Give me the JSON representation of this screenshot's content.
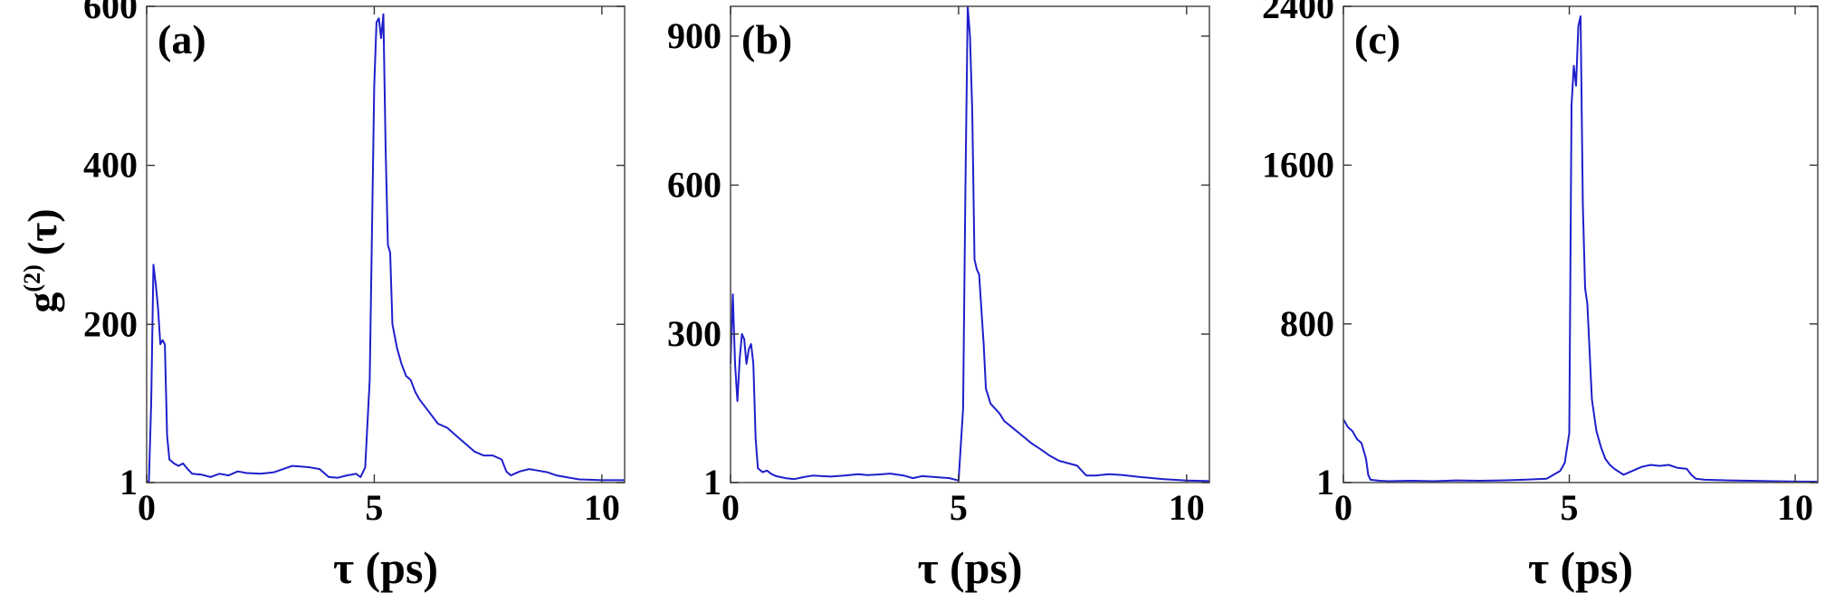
{
  "figure": {
    "ylabel": {
      "main": "g",
      "sup": "(2)",
      "arg": "(τ)"
    },
    "line_color": "#1f1fcc",
    "frame_color": "#555555"
  },
  "chart_data": [
    {
      "type": "line",
      "panel_label": "(a)",
      "xlabel": "τ  (ps)",
      "ylabel": "g(2) (τ)",
      "xlim": [
        0,
        10.5
      ],
      "ylim": [
        1,
        600
      ],
      "xticks": [
        0,
        5,
        10
      ],
      "xtick_labels": [
        "0",
        "5",
        "10"
      ],
      "yticks": [
        1,
        200,
        400,
        600
      ],
      "ytick_labels": [
        "1",
        "200",
        "400",
        "600"
      ],
      "grid": false,
      "series": [
        {
          "x": [
            0.0,
            0.05,
            0.1,
            0.15,
            0.2,
            0.25,
            0.3,
            0.35,
            0.4,
            0.45,
            0.5,
            0.6,
            0.7,
            0.8,
            0.9,
            1.0,
            1.2,
            1.4,
            1.6,
            1.8,
            2.0,
            2.2,
            2.5,
            2.8,
            3.0,
            3.2,
            3.4,
            3.6,
            3.8,
            4.0,
            4.2,
            4.4,
            4.6,
            4.7,
            4.8,
            4.9,
            5.0,
            5.05,
            5.1,
            5.15,
            5.2,
            5.25,
            5.3,
            5.35,
            5.4,
            5.45,
            5.5,
            5.6,
            5.7,
            5.8,
            5.9,
            6.0,
            6.2,
            6.4,
            6.6,
            6.8,
            7.0,
            7.2,
            7.4,
            7.6,
            7.8,
            7.9,
            8.0,
            8.2,
            8.4,
            8.6,
            8.8,
            9.0,
            9.2,
            9.5,
            10.0,
            10.5
          ],
          "y": [
            1,
            3,
            100,
            275,
            250,
            220,
            175,
            180,
            175,
            60,
            30,
            25,
            22,
            25,
            18,
            12,
            11,
            8,
            12,
            10,
            15,
            13,
            12,
            14,
            18,
            22,
            21,
            20,
            18,
            8,
            7,
            10,
            12,
            8,
            20,
            130,
            500,
            580,
            585,
            560,
            590,
            420,
            300,
            290,
            200,
            185,
            170,
            150,
            135,
            130,
            115,
            105,
            90,
            75,
            70,
            60,
            50,
            40,
            35,
            35,
            30,
            15,
            10,
            15,
            18,
            16,
            14,
            10,
            8,
            5,
            4,
            4
          ]
        }
      ]
    },
    {
      "type": "line",
      "panel_label": "(b)",
      "xlabel": "τ  (ps)",
      "ylabel": "",
      "xlim": [
        0,
        10.5
      ],
      "ylim": [
        1,
        960
      ],
      "xticks": [
        0,
        5,
        10
      ],
      "xtick_labels": [
        "0",
        "5",
        "10"
      ],
      "yticks": [
        1,
        300,
        600,
        900
      ],
      "ytick_labels": [
        "1",
        "300",
        "600",
        "900"
      ],
      "grid": false,
      "series": [
        {
          "x": [
            0.0,
            0.05,
            0.1,
            0.15,
            0.2,
            0.25,
            0.3,
            0.35,
            0.4,
            0.45,
            0.5,
            0.55,
            0.6,
            0.7,
            0.8,
            0.9,
            1.0,
            1.2,
            1.4,
            1.6,
            1.8,
            2.0,
            2.2,
            2.5,
            2.8,
            3.0,
            3.2,
            3.5,
            3.8,
            4.0,
            4.2,
            4.5,
            4.8,
            5.0,
            5.1,
            5.15,
            5.2,
            5.25,
            5.3,
            5.35,
            5.4,
            5.45,
            5.5,
            5.55,
            5.6,
            5.7,
            5.8,
            5.9,
            6.0,
            6.2,
            6.4,
            6.6,
            6.8,
            7.0,
            7.2,
            7.4,
            7.6,
            7.8,
            8.0,
            8.3,
            8.6,
            9.0,
            9.5,
            10.0,
            10.5
          ],
          "y": [
            240,
            380,
            240,
            165,
            250,
            300,
            290,
            240,
            270,
            280,
            240,
            90,
            30,
            22,
            25,
            18,
            14,
            10,
            8,
            12,
            15,
            14,
            13,
            15,
            18,
            16,
            17,
            19,
            15,
            10,
            14,
            12,
            10,
            5,
            150,
            600,
            960,
            900,
            750,
            450,
            430,
            420,
            350,
            280,
            190,
            160,
            150,
            140,
            125,
            110,
            95,
            80,
            68,
            55,
            45,
            40,
            35,
            15,
            15,
            18,
            16,
            12,
            8,
            5,
            4
          ]
        }
      ]
    },
    {
      "type": "line",
      "panel_label": "(c)",
      "xlabel": "τ  (ps)",
      "ylabel": "",
      "xlim": [
        0,
        10.5
      ],
      "ylim": [
        1,
        2400
      ],
      "xticks": [
        0,
        5,
        10
      ],
      "xtick_labels": [
        "0",
        "5",
        "10"
      ],
      "yticks": [
        1,
        800,
        1600,
        2400
      ],
      "ytick_labels": [
        "1",
        "800",
        "1600",
        "2400"
      ],
      "grid": false,
      "series": [
        {
          "x": [
            0.0,
            0.1,
            0.2,
            0.3,
            0.4,
            0.5,
            0.55,
            0.6,
            0.8,
            1.0,
            1.5,
            2.0,
            2.5,
            3.0,
            3.5,
            4.0,
            4.5,
            4.8,
            4.9,
            5.0,
            5.05,
            5.1,
            5.15,
            5.2,
            5.25,
            5.3,
            5.35,
            5.4,
            5.5,
            5.6,
            5.7,
            5.8,
            5.9,
            6.0,
            6.2,
            6.4,
            6.6,
            6.8,
            7.0,
            7.2,
            7.4,
            7.6,
            7.7,
            7.8,
            8.0,
            8.5,
            9.0,
            9.5,
            10.0,
            10.5
          ],
          "y": [
            320,
            280,
            260,
            220,
            200,
            120,
            40,
            15,
            10,
            8,
            10,
            8,
            12,
            10,
            12,
            15,
            20,
            60,
            100,
            250,
            1900,
            2100,
            2000,
            2300,
            2350,
            1400,
            980,
            900,
            420,
            260,
            180,
            120,
            90,
            70,
            40,
            60,
            80,
            90,
            85,
            90,
            75,
            70,
            40,
            20,
            15,
            12,
            10,
            8,
            6,
            5
          ]
        }
      ]
    }
  ]
}
